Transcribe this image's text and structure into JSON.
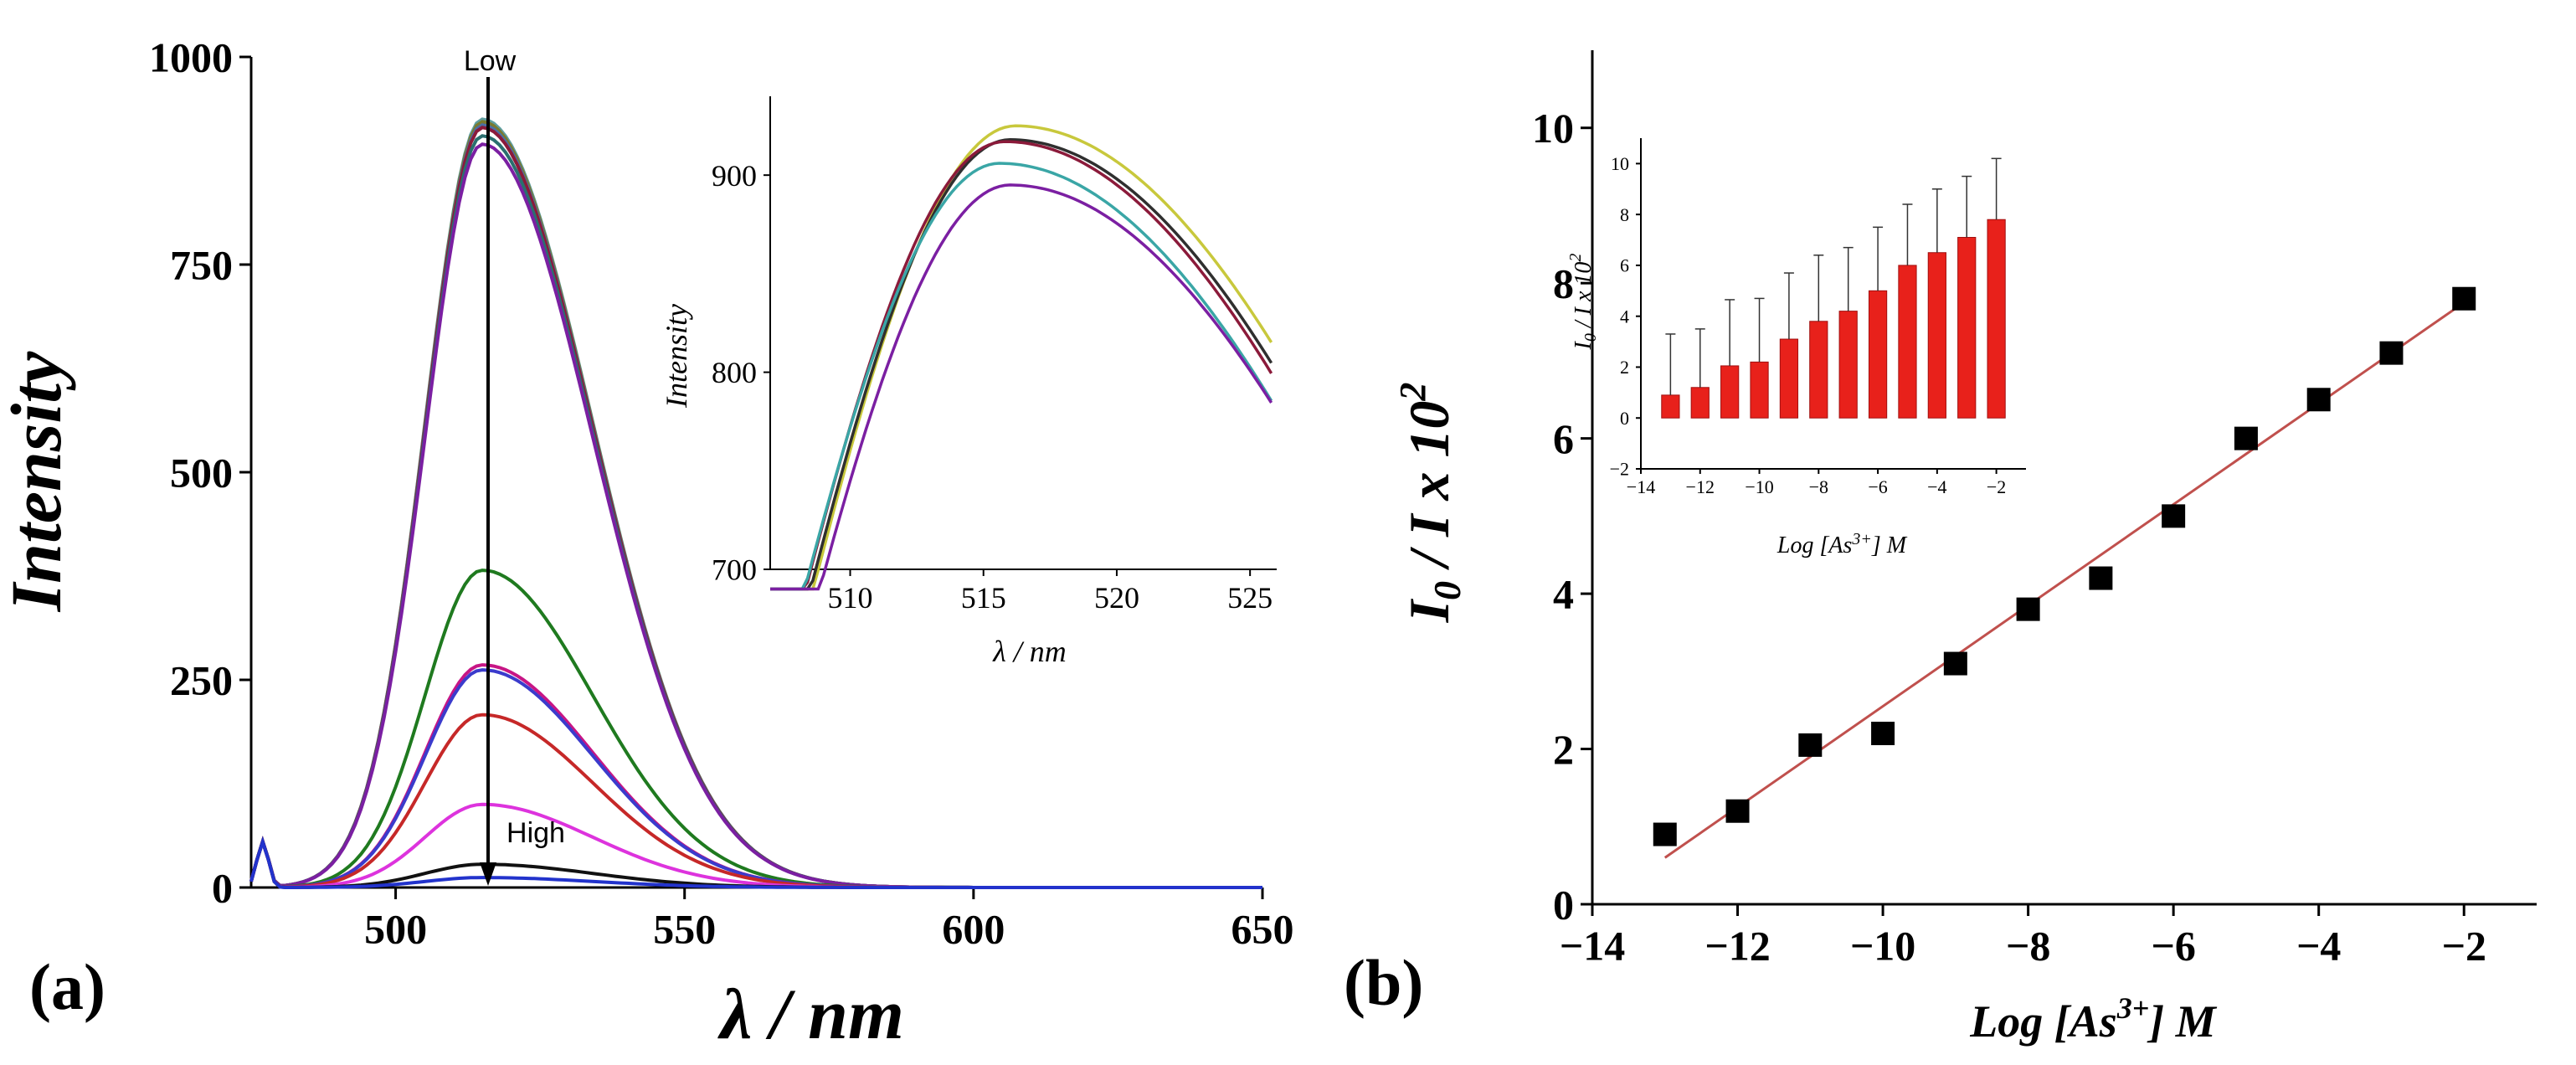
{
  "panels": {
    "a": {
      "letter": "(a)"
    },
    "b": {
      "letter": "(b)"
    }
  },
  "colors": {
    "axis": "#000000",
    "fit_line": "#c0504d",
    "bar": "#e8211b",
    "marker": "#000000"
  },
  "chart_data": [
    {
      "id": "emission_main",
      "type": "line",
      "xlabel": "λ / nm",
      "ylabel": "Intensity",
      "xlim": [
        475,
        650
      ],
      "ylim": [
        0,
        1000
      ],
      "xticks": [
        500,
        550,
        600,
        650
      ],
      "yticks": [
        0,
        250,
        500,
        750,
        1000
      ],
      "annotations": {
        "top": "Low",
        "bottom": "High"
      },
      "arrow_x": 516,
      "peak_x": 515,
      "series": [
        {
          "color": "#5f9ea0",
          "peak": 925
        },
        {
          "color": "#7a7a2e",
          "peak": 922
        },
        {
          "color": "#4a6fa5",
          "peak": 918
        },
        {
          "color": "#8b1a3a",
          "peak": 915
        },
        {
          "color": "#2a6f6f",
          "peak": 905
        },
        {
          "color": "#7b1fa2",
          "peak": 895
        },
        {
          "color": "#1f7a1f",
          "peak": 382
        },
        {
          "color": "#c71585",
          "peak": 268
        },
        {
          "color": "#3b3bcc",
          "peak": 262
        },
        {
          "color": "#c62828",
          "peak": 208
        },
        {
          "color": "#dd33dd",
          "peak": 100
        },
        {
          "color": "#111111",
          "peak": 28
        },
        {
          "color": "#2233cc",
          "peak": 12
        }
      ]
    },
    {
      "id": "emission_inset",
      "type": "line",
      "xlabel": "λ / nm",
      "ylabel": "Intensity",
      "xlim": [
        507,
        526
      ],
      "ylim": [
        700,
        940
      ],
      "xticks": [
        510,
        515,
        520,
        525
      ],
      "yticks": [
        700,
        800,
        900
      ],
      "series": [
        {
          "color": "#c8c83c",
          "peak": 925,
          "center": 516.2
        },
        {
          "color": "#2f2f2f",
          "peak": 918,
          "center": 516.0
        },
        {
          "color": "#8b1a3a",
          "peak": 917,
          "center": 515.8
        },
        {
          "color": "#3aa6a6",
          "peak": 906,
          "center": 515.6
        },
        {
          "color": "#7b1fa2",
          "peak": 895,
          "center": 516.0
        }
      ]
    },
    {
      "id": "calibration_main",
      "type": "scatter",
      "xlabel": "Log [As3+] M",
      "ylabel": "I0 / I x 10^2",
      "xlim": [
        -14,
        -1
      ],
      "ylim": [
        0,
        11
      ],
      "xticks": [
        -14,
        -12,
        -10,
        -8,
        -6,
        -4,
        -2
      ],
      "yticks": [
        0,
        2,
        4,
        6,
        8,
        10
      ],
      "x": [
        -13,
        -12,
        -11,
        -10,
        -9,
        -8,
        -7,
        -6,
        -5,
        -4,
        -3,
        -2
      ],
      "y": [
        0.9,
        1.2,
        2.05,
        2.2,
        3.1,
        3.8,
        4.2,
        5.0,
        6.0,
        6.5,
        7.1,
        7.8
      ],
      "fit": {
        "x": [
          -13,
          -2
        ],
        "y": [
          0.6,
          7.75
        ]
      }
    },
    {
      "id": "calibration_inset",
      "type": "bar",
      "xlabel": "Log [As3+] M",
      "ylabel": "I0 / I x 10^2",
      "xlim": [
        -14,
        -1
      ],
      "ylim": [
        -2,
        11
      ],
      "xticks": [
        -14,
        -12,
        -10,
        -8,
        -6,
        -4,
        -2
      ],
      "yticks": [
        -2,
        0,
        2,
        4,
        6,
        8,
        10
      ],
      "x": [
        -13,
        -12,
        -11,
        -10,
        -9,
        -8,
        -7,
        -6,
        -5,
        -4,
        -3,
        -2
      ],
      "values": [
        0.9,
        1.2,
        2.05,
        2.2,
        3.1,
        3.8,
        4.2,
        5.0,
        6.0,
        6.5,
        7.1,
        7.8
      ],
      "errors": [
        2.4,
        2.3,
        2.6,
        2.5,
        2.6,
        2.6,
        2.5,
        2.5,
        2.4,
        2.5,
        2.4,
        2.4
      ]
    }
  ]
}
